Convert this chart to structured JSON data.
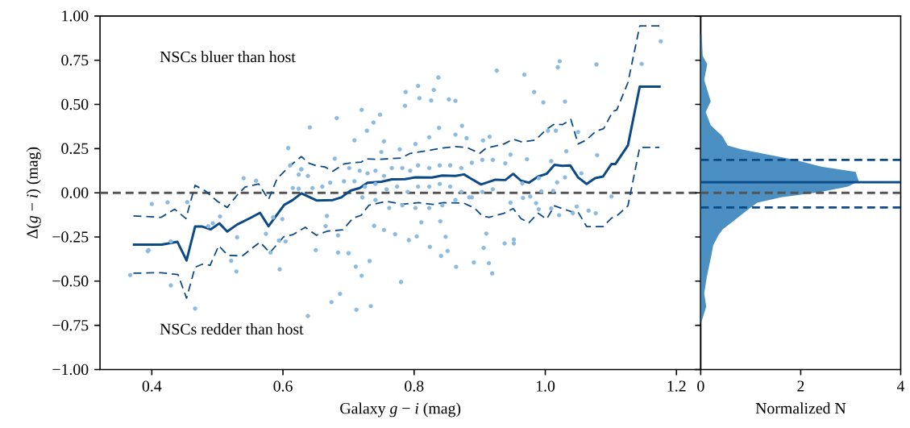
{
  "chart_data": [
    {
      "type": "scatter",
      "xlabel": "Galaxy *g* − *i* (mag)",
      "ylabel": "Δ(*g* − *i*) (mag)",
      "xlim": [
        0.321,
        1.237
      ],
      "ylim": [
        -1,
        1
      ],
      "xticks": [
        0.4,
        0.6,
        0.8,
        {
          "value": 1.0,
          "label": "1.0"
        },
        1.2
      ],
      "yticks": [
        {
          "value": -1,
          "label": "−1.00"
        },
        {
          "value": -0.75,
          "label": "−0.75"
        },
        {
          "value": -0.5,
          "label": "−0.50"
        },
        {
          "value": -0.25,
          "label": "−0.25"
        },
        {
          "value": 0,
          "label": "0.00"
        },
        {
          "value": 0.25,
          "label": "0.25"
        },
        {
          "value": 0.5,
          "label": "0.50"
        },
        {
          "value": 0.75,
          "label": "0.75"
        },
        {
          "value": 1,
          "label": "1.00"
        }
      ],
      "annotations": [
        "NSCs bluer than host",
        "NSCs redder than host"
      ],
      "ref_lines": [
        {
          "axis": "y",
          "value": 0,
          "color": "#555555",
          "line_style": "dashed"
        }
      ],
      "series": [
        {
          "type": "scatter",
          "marker": "circle",
          "color": "#8dbadf",
          "x": [
            0.367,
            0.394,
            0.424,
            0.4,
            0.395,
            0.429,
            0.429,
            0.454,
            0.466,
            0.486,
            0.493,
            0.504,
            0.53,
            0.521,
            0.529,
            0.54,
            0.559,
            0.574,
            0.581,
            0.595,
            0.585,
            0.599,
            0.594,
            0.604,
            0.608,
            0.611,
            0.628,
            0.624,
            0.615,
            0.624,
            0.641,
            0.682,
            0.72,
            0.787,
            0.806,
            0.83,
            0.853,
            0.863,
            0.808,
            0.826,
            0.786,
            0.748,
            0.738,
            0.728,
            0.709,
            0.679,
            0.838,
            0.873,
            0.915,
            0.905,
            0.65,
            0.684,
            0.7,
            0.711,
            0.72,
            0.687,
            0.674,
            0.712,
            0.734,
            0.638,
            0.732,
            0.78,
            0.792,
            0.824,
            0.841,
            0.851,
            0.864,
            0.891,
            0.906,
            0.914,
            0.919,
            0.91,
            0.848,
            0.84,
            0.804,
            0.811,
            0.771,
            0.754,
            0.739,
            0.684,
            0.667,
            0.665,
            0.645,
            0.638,
            0.701,
            0.717,
            0.729,
            0.741,
            0.754,
            0.766,
            0.782,
            0.794,
            0.806,
            0.823,
            0.839,
            0.855,
            0.872,
            0.888,
            0.904,
            0.92,
            0.709,
            0.725,
            0.741,
            0.758,
            0.774,
            0.79,
            0.806,
            0.823,
            0.839,
            0.855,
            0.872,
            0.888,
            0.904,
            0.92,
            0.721,
            0.741,
            0.762,
            0.782,
            0.802,
            0.823,
            0.843,
            0.863,
            0.884,
            0.75,
            0.778,
            0.802,
            0.823,
            0.863,
            0.88,
            0.754,
            0.693,
            0.672,
            0.66,
            0.628,
            1.176,
            1.147,
            1.078,
            1.022,
            1.019,
            0.968,
            0.926,
            0.983,
            0.997,
            1.03,
            1.004,
            1.016,
            1.05,
            1.032,
            1.079,
            0.947,
            0.972,
            1.009,
            0.939,
            1.055,
            1.03,
            1.018,
            0.99,
            0.965,
            0.994,
            1.012,
            0.977,
            0.986,
            0.966,
            0.947,
            0.99,
            1.009,
            1.021,
            1.048,
            1.042,
            1.066,
            1.077,
            1.101,
            0.938,
            0.952,
            0.952,
            0.837
          ],
          "values": [
            -0.466,
            -0.33,
            -0.054,
            -0.063,
            -0.324,
            -0.275,
            -0.524,
            -0.053,
            -0.655,
            -0.189,
            -0.173,
            -0.134,
            -0.252,
            -0.385,
            -0.445,
            0.083,
            0.068,
            -0.232,
            -0.339,
            -0.433,
            -0.139,
            -0.149,
            -0.27,
            -0.275,
            0.253,
            0.155,
            0.133,
            0.103,
            0.027,
            0.023,
            0.37,
            0.422,
            0.469,
            0.57,
            0.605,
            0.582,
            0.528,
            0.52,
            0.535,
            0.522,
            0.492,
            0.442,
            0.397,
            0.351,
            0.297,
            0.193,
            0.367,
            0.379,
            0.317,
            0.296,
            -0.324,
            -0.338,
            -0.342,
            -0.418,
            -0.469,
            -0.572,
            -0.618,
            -0.662,
            -0.641,
            -0.697,
            -0.386,
            -0.505,
            -0.268,
            -0.306,
            -0.357,
            -0.329,
            -0.419,
            -0.394,
            -0.312,
            -0.398,
            -0.456,
            -0.231,
            -0.249,
            -0.161,
            -0.247,
            -0.167,
            -0.234,
            -0.21,
            -0.187,
            -0.241,
            -0.131,
            -0.189,
            0.027,
            0.095,
            0.14,
            0.125,
            0.11,
            0.125,
            0.095,
            0.14,
            0.14,
            0.125,
            0.155,
            0.14,
            0.155,
            0.155,
            0.14,
            0.17,
            0.186,
            0.186,
            0.065,
            0.035,
            0.05,
            0.02,
            0.035,
            0.005,
            0.035,
            0.035,
            0.05,
            0.035,
            0.005,
            -0.026,
            0.005,
            0.02,
            -0.026,
            -0.041,
            -0.086,
            -0.071,
            -0.086,
            -0.086,
            -0.071,
            -0.041,
            -0.026,
            0.231,
            0.246,
            0.276,
            0.314,
            0.329,
            0.309,
            0.291,
            0.065,
            0.057,
            0.035,
            0.133,
            0.857,
            0.729,
            0.726,
            0.744,
            0.71,
            0.668,
            0.691,
            0.57,
            0.511,
            0.516,
            0.351,
            0.351,
            0.344,
            0.235,
            0.213,
            0.216,
            0.19,
            0.179,
            0.167,
            0.11,
            0.087,
            0.059,
            0.083,
            0.053,
            0.008,
            0.011,
            -0.021,
            -0.059,
            -0.029,
            -0.056,
            -0.093,
            -0.089,
            -0.127,
            -0.078,
            -0.116,
            -0.101,
            -0.116,
            -0.021,
            -0.287,
            -0.287,
            -0.264,
            0.652
          ]
        },
        {
          "type": "line",
          "line_style": "solid",
          "color": "#0b4a86",
          "x": [
            0.371,
            0.415,
            0.439,
            0.453,
            0.466,
            0.477,
            0.49,
            0.503,
            0.515,
            0.53,
            0.55,
            0.565,
            0.578,
            0.602,
            0.615,
            0.628,
            0.652,
            0.676,
            0.689,
            0.703,
            0.717,
            0.729,
            0.75,
            0.766,
            0.786,
            0.802,
            0.827,
            0.843,
            0.863,
            0.876,
            0.888,
            0.902,
            0.924,
            0.939,
            0.951,
            0.963,
            0.975,
            0.989,
            1.002,
            1.014,
            1.026,
            1.038,
            1.05,
            1.063,
            1.076,
            1.088,
            1.101,
            1.107,
            1.126,
            1.144,
            1.176
          ],
          "values": [
            -0.293,
            -0.293,
            -0.277,
            -0.383,
            -0.191,
            -0.191,
            -0.207,
            -0.173,
            -0.219,
            -0.18,
            -0.143,
            -0.113,
            -0.189,
            -0.068,
            -0.041,
            -0.003,
            -0.044,
            -0.041,
            -0.026,
            0.012,
            0.027,
            0.057,
            0.062,
            0.076,
            0.077,
            0.087,
            0.086,
            0.098,
            0.095,
            0.104,
            0.077,
            0.047,
            0.074,
            0.072,
            0.107,
            0.068,
            0.057,
            0.092,
            0.107,
            0.158,
            0.152,
            0.155,
            0.087,
            0.05,
            0.083,
            0.092,
            0.163,
            0.163,
            0.268,
            0.6,
            0.6
          ]
        },
        {
          "type": "line",
          "line_style": "dashed",
          "color": "#0b4a86",
          "x": [
            0.372,
            0.414,
            0.435,
            0.452,
            0.466,
            0.481,
            0.5,
            0.515,
            0.53,
            0.542,
            0.563,
            0.578,
            0.591,
            0.61,
            0.628,
            0.64,
            0.652,
            0.664,
            0.676,
            0.693,
            0.707,
            0.719,
            0.727,
            0.745,
            0.764,
            0.78,
            0.794,
            0.819,
            0.843,
            0.863,
            0.88,
            0.9,
            0.91,
            0.937,
            0.951,
            0.965,
            0.985,
            1.002,
            1.014,
            1.026,
            1.039,
            1.05,
            1.063,
            1.077,
            1.089,
            1.103,
            1.109,
            1.126,
            1.144,
            1.174
          ],
          "values": [
            -0.131,
            -0.139,
            -0.093,
            -0.146,
            0.042,
            0.012,
            -0.048,
            -0.083,
            -0.014,
            0.032,
            0.05,
            -0.038,
            0.08,
            0.15,
            0.205,
            0.167,
            0.152,
            0.146,
            0.122,
            0.163,
            0.171,
            0.173,
            0.192,
            0.189,
            0.193,
            0.196,
            0.223,
            0.238,
            0.253,
            0.261,
            0.257,
            0.223,
            0.253,
            0.276,
            0.303,
            0.287,
            0.299,
            0.359,
            0.389,
            0.385,
            0.415,
            0.276,
            0.299,
            0.348,
            0.363,
            0.46,
            0.469,
            0.623,
            0.944,
            0.944
          ]
        },
        {
          "type": "line",
          "line_style": "dashed",
          "color": "#0b4a86",
          "x": [
            0.372,
            0.414,
            0.44,
            0.453,
            0.466,
            0.477,
            0.489,
            0.502,
            0.516,
            0.538,
            0.565,
            0.58,
            0.601,
            0.615,
            0.634,
            0.651,
            0.668,
            0.691,
            0.707,
            0.719,
            0.731,
            0.758,
            0.782,
            0.807,
            0.829,
            0.845,
            0.876,
            0.892,
            0.904,
            0.914,
            0.937,
            0.951,
            0.963,
            0.975,
            0.989,
            1.002,
            1.014,
            1.039,
            1.05,
            1.063,
            1.088,
            1.101,
            1.109,
            1.126,
            1.144,
            1.174
          ],
          "values": [
            -0.455,
            -0.452,
            -0.463,
            -0.596,
            -0.421,
            -0.404,
            -0.41,
            -0.3,
            -0.354,
            -0.357,
            -0.279,
            -0.339,
            -0.249,
            -0.237,
            -0.195,
            -0.24,
            -0.217,
            -0.21,
            -0.143,
            -0.128,
            -0.071,
            -0.048,
            -0.065,
            -0.056,
            -0.066,
            -0.056,
            -0.059,
            -0.086,
            -0.131,
            -0.139,
            -0.116,
            -0.089,
            -0.146,
            -0.17,
            -0.116,
            -0.149,
            -0.074,
            -0.106,
            -0.109,
            -0.191,
            -0.191,
            -0.143,
            -0.131,
            -0.074,
            0.257,
            0.257
          ]
        }
      ]
    },
    {
      "type": "area",
      "orientation": "horizontal",
      "xlabel": "Normalized N",
      "tick_labels": "x",
      "xlim": [
        0,
        4
      ],
      "ylim": [
        -1,
        1
      ],
      "xticks": [
        0,
        2,
        4
      ],
      "yticks": [
        -1,
        -0.75,
        -0.5,
        -0.25,
        0,
        0.25,
        0.5,
        0.75,
        1
      ],
      "ref_lines": [
        {
          "axis": "y",
          "value": 0.186,
          "color": "#0b4a86",
          "line_style": "dashed"
        },
        {
          "axis": "y",
          "value": 0.06,
          "color": "#0b4a86",
          "line_style": "solid"
        },
        {
          "axis": "y",
          "value": -0.083,
          "color": "#0b4a86",
          "line_style": "dashed"
        },
        {
          "axis": "y",
          "value": 0,
          "color": "#555555",
          "line_style": "dashed"
        }
      ],
      "series": [
        {
          "color": "#4b8fc3",
          "x": [
            0.894,
            0.774,
            0.728,
            0.638,
            0.517,
            0.457,
            0.382,
            0.321,
            0.268,
            0.246,
            0.216,
            0.186,
            0.148,
            0.118,
            0.065,
            0.035,
            0.005,
            -0.026,
            -0.056,
            -0.101,
            -0.161,
            -0.207,
            -0.237,
            -0.297,
            -0.357,
            -0.478,
            -0.569,
            -0.644,
            -0.735
          ],
          "values": [
            0.02,
            0.04,
            0.13,
            0.07,
            0.2,
            0.1,
            0.2,
            0.43,
            0.54,
            0.81,
            1.34,
            1.88,
            2.41,
            3.1,
            3.16,
            2.94,
            2.41,
            1.61,
            1.13,
            0.92,
            0.65,
            0.44,
            0.36,
            0.25,
            0.21,
            0.12,
            0.07,
            0.11,
            0.01
          ]
        }
      ]
    }
  ]
}
